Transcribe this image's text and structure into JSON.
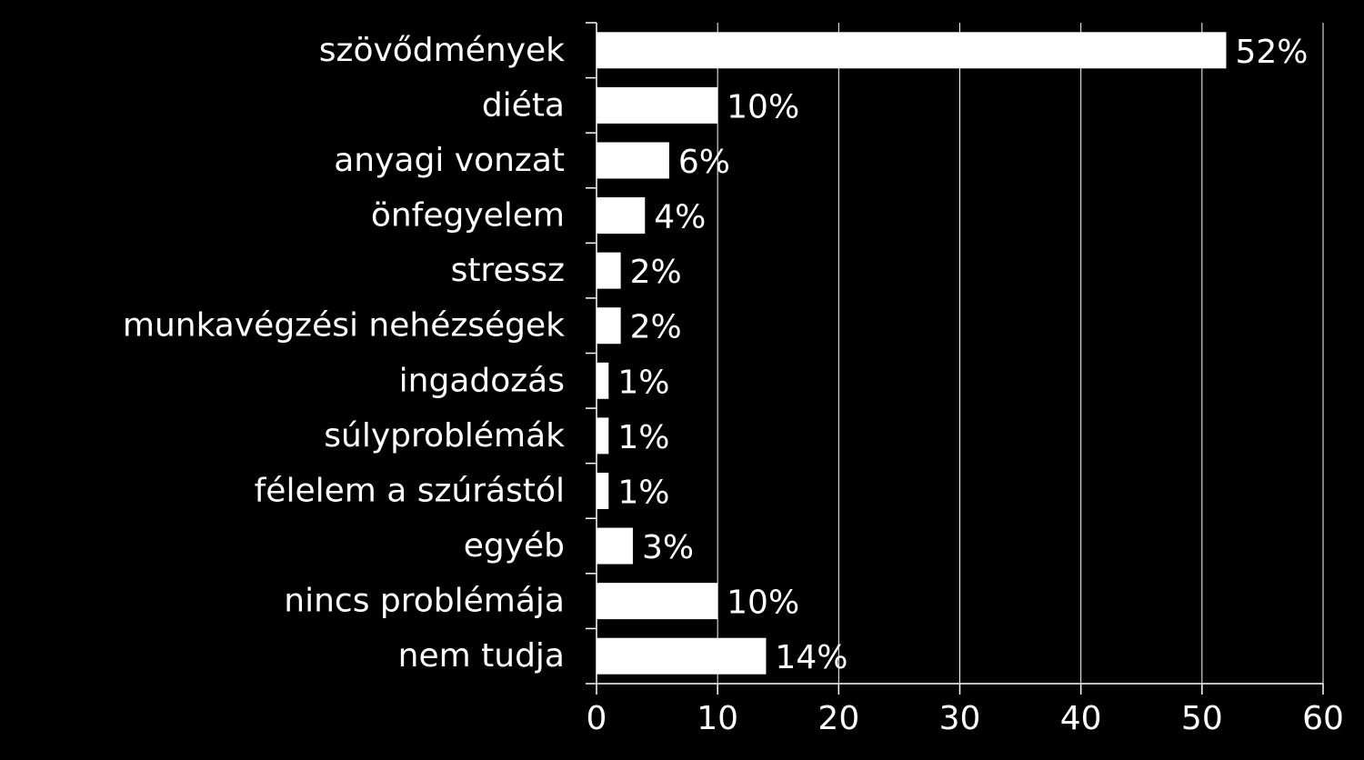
{
  "colors": {
    "background": "#000000",
    "bar": "#ffffff",
    "axis": "#ffffff",
    "grid": "#ffffff",
    "text": "#ffffff"
  },
  "chart_data": {
    "type": "bar",
    "orientation": "horizontal",
    "title": "",
    "xlabel": "",
    "ylabel": "",
    "xlim": [
      0,
      60
    ],
    "x_ticks": [
      0,
      10,
      20,
      30,
      40,
      50,
      60
    ],
    "grid": "vertical",
    "legend": "none",
    "categories": [
      "szövődmények",
      "diéta",
      "anyagi vonzat",
      "önfegyelem",
      "stressz",
      "munkavégzési nehézségek",
      "ingadozás",
      "súlyproblémák",
      "félelem a szúrástól",
      "egyéb",
      "nincs problémája",
      "nem tudja"
    ],
    "values": [
      52,
      10,
      6,
      4,
      2,
      2,
      1,
      1,
      1,
      3,
      10,
      14
    ],
    "data_labels": [
      "52%",
      "10%",
      "6%",
      "4%",
      "2%",
      "2%",
      "1%",
      "1%",
      "1%",
      "3%",
      "10%",
      "14%"
    ]
  }
}
